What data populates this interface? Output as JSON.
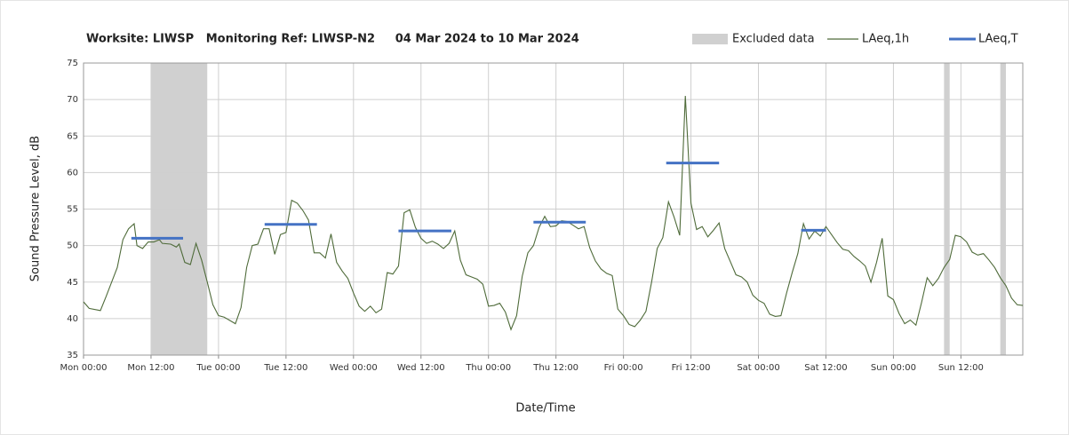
{
  "chart_data": {
    "type": "line",
    "title": "Worksite: LIWSP   Monitoring Ref: LIWSP-N2     04 Mar 2024 to 10 Mar 2024",
    "x_label": "Date/Time",
    "y_label": "Sound Pressure Level, dB",
    "xlim": [
      0,
      167
    ],
    "ylim": [
      35,
      75
    ],
    "yticks": [
      35,
      40,
      45,
      50,
      55,
      60,
      65,
      70,
      75
    ],
    "xticks": [
      {
        "value": 0,
        "label": "Mon 00:00"
      },
      {
        "value": 12,
        "label": "Mon 12:00"
      },
      {
        "value": 24,
        "label": "Tue 00:00"
      },
      {
        "value": 36,
        "label": "Tue 12:00"
      },
      {
        "value": 48,
        "label": "Wed 00:00"
      },
      {
        "value": 60,
        "label": "Wed 12:00"
      },
      {
        "value": 72,
        "label": "Thu 00:00"
      },
      {
        "value": 84,
        "label": "Thu 12:00"
      },
      {
        "value": 96,
        "label": "Fri 00:00"
      },
      {
        "value": 108,
        "label": "Fri 12:00"
      },
      {
        "value": 120,
        "label": "Sat 00:00"
      },
      {
        "value": 132,
        "label": "Sat 12:00"
      },
      {
        "value": 144,
        "label": "Sun 00:00"
      },
      {
        "value": 156,
        "label": "Sun 12:00"
      }
    ],
    "grid": true,
    "excluded": {
      "name": "Excluded data",
      "color": "#d0d0d0",
      "ranges": [
        [
          12,
          22
        ],
        [
          153,
          154
        ],
        [
          163,
          164
        ]
      ]
    },
    "series": [
      {
        "name": "LAeq,1h",
        "color": "#4f6b3a",
        "x": [
          0,
          1,
          3,
          4,
          6,
          7,
          8,
          9,
          9.5,
          10.5,
          11.5,
          12.5,
          13.5,
          14,
          15.5,
          16.5,
          17,
          18,
          19,
          20,
          21,
          22,
          23,
          24,
          25,
          27,
          28,
          29,
          30,
          31,
          32,
          33,
          34,
          35,
          36,
          37,
          38,
          39,
          40,
          41,
          42,
          43,
          44,
          45,
          46,
          47,
          48,
          49,
          50,
          51,
          52,
          53,
          54,
          55,
          56,
          57,
          58,
          59,
          60,
          61,
          62,
          63,
          64,
          65,
          66,
          67,
          68,
          69,
          70,
          71,
          72,
          73,
          74,
          75,
          76,
          77,
          78,
          79,
          80,
          81,
          82,
          83,
          84,
          85,
          86,
          87,
          88,
          89,
          90,
          91,
          92,
          93,
          94,
          95,
          96,
          97,
          98,
          99,
          100,
          101,
          102,
          103,
          104,
          105,
          106,
          107,
          108,
          109,
          110,
          111,
          112,
          113,
          114,
          115,
          116,
          117,
          118,
          119,
          120,
          121,
          122,
          123,
          124,
          125,
          126,
          127,
          128,
          129,
          130,
          131,
          132,
          133,
          134,
          135,
          136,
          137,
          138,
          139,
          140,
          141,
          142,
          143,
          144,
          145,
          146,
          147,
          148,
          149,
          150,
          151,
          152,
          153,
          154,
          155,
          156,
          157,
          158,
          159,
          160,
          161,
          162,
          163,
          164,
          165,
          166,
          167
        ],
        "values": [
          42.3,
          41.4,
          41.1,
          43,
          47,
          50.8,
          52.3,
          53,
          50,
          49.6,
          50.5,
          50.5,
          50.8,
          50.3,
          50.2,
          49.8,
          50.2,
          47.7,
          47.4,
          50.3,
          48,
          45,
          41.9,
          40.4,
          40.2,
          39.3,
          41.5,
          47,
          50,
          50.2,
          52.3,
          52.3,
          48.8,
          51.5,
          51.8,
          56.2,
          55.8,
          54.8,
          53.5,
          49,
          49,
          48.3,
          51.6,
          47.7,
          46.5,
          45.5,
          43.5,
          41.7,
          41,
          41.7,
          40.8,
          41.3,
          46.3,
          46.1,
          47.2,
          54.5,
          54.9,
          52.5,
          51,
          50.3,
          50.6,
          50.2,
          49.6,
          50.3,
          52,
          48,
          46,
          45.7,
          45.4,
          44.7,
          41.7,
          41.8,
          42.1,
          40.9,
          38.5,
          40.4,
          45.8,
          49,
          50,
          52.5,
          54,
          52.6,
          52.7,
          53.4,
          53.3,
          52.8,
          52.3,
          52.6,
          49.7,
          47.9,
          46.8,
          46.2,
          45.9,
          41.3,
          40.4,
          39.2,
          38.9,
          39.8,
          41,
          45,
          49.6,
          51.1,
          56,
          53.9,
          51.4,
          70.5,
          55.8,
          52.2,
          52.6,
          51.2,
          52.1,
          53.1,
          49.6,
          47.8,
          46,
          45.7,
          45,
          43.2,
          42.5,
          42.1,
          40.6,
          40.3,
          40.4,
          43.5,
          46.3,
          48.9,
          53,
          50.9,
          52,
          51.3,
          52.6,
          51.5,
          50.4,
          49.5,
          49.3,
          48.5,
          47.9,
          47.2,
          45,
          47.7,
          51,
          43.1,
          42.6,
          40.7,
          39.3,
          39.8,
          39.1,
          42.2,
          45.6,
          44.5,
          45.5,
          47,
          48.1,
          51.4,
          51.2,
          50.5,
          49.1,
          48.7,
          48.9,
          48,
          47,
          45.6,
          44.5,
          42.8,
          41.9,
          41.8
        ]
      },
      {
        "name": "LAeq,T",
        "color": "#4472c4",
        "x_start": [
          8.5,
          32.2,
          56,
          80,
          103.6,
          127.6
        ],
        "x_end": [
          17.7,
          41.5,
          65.4,
          89.3,
          113,
          132
        ],
        "values": [
          51,
          52.9,
          52,
          53.2,
          61.3,
          52.1
        ]
      }
    ]
  }
}
